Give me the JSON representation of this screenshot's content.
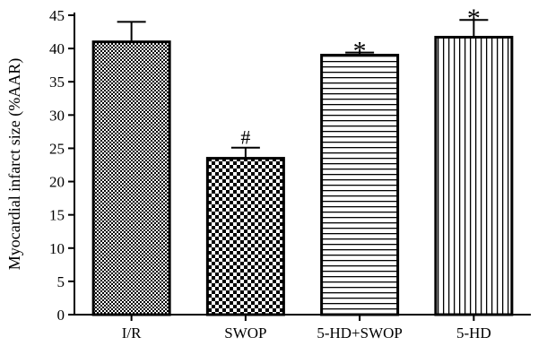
{
  "chart_data": {
    "type": "bar",
    "categories": [
      "I/R",
      "SWOP",
      "5-HD+SWOP",
      "5-HD"
    ],
    "values": [
      41.0,
      23.5,
      39.0,
      41.7
    ],
    "errors": [
      3.0,
      1.6,
      0.4,
      2.6
    ],
    "patterns": [
      "fine-checker",
      "coarse-checker",
      "horizontal-lines",
      "vertical-lines"
    ],
    "annotations": [
      "",
      "#",
      "*",
      "*"
    ],
    "xlabel": "",
    "ylabel": "Myocardial infarct size (%AAR)",
    "ylim": [
      0,
      45
    ],
    "yticks": [
      0,
      5,
      10,
      15,
      20,
      25,
      30,
      35,
      40,
      45
    ],
    "grid": false
  }
}
